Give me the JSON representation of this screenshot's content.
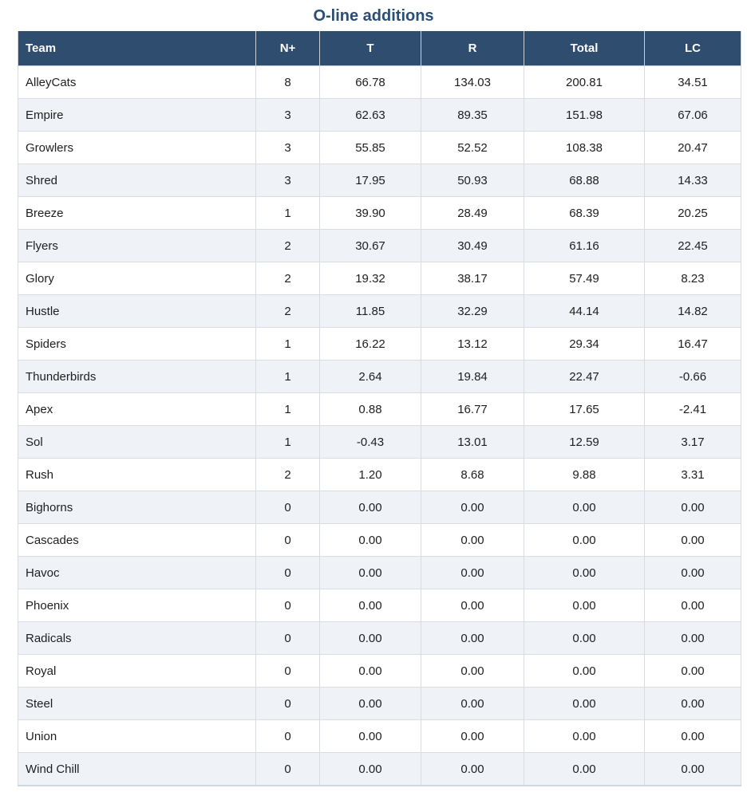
{
  "title": "O-line additions",
  "colors": {
    "title_text": "#2a4e74",
    "header_bg": "#2f4d6e",
    "header_text": "#ffffff",
    "row_alt_bg": "#eff3f8",
    "row_bg": "#ffffff",
    "border": "#d9dde2",
    "cell_text": "#1e1e1e"
  },
  "chart_data": {
    "type": "table",
    "title": "O-line additions",
    "columns": [
      {
        "key": "team",
        "label": "Team",
        "align": "left"
      },
      {
        "key": "n_plus",
        "label": "N+",
        "align": "center"
      },
      {
        "key": "t",
        "label": "T",
        "align": "center"
      },
      {
        "key": "r",
        "label": "R",
        "align": "center"
      },
      {
        "key": "total",
        "label": "Total",
        "align": "center"
      },
      {
        "key": "lc",
        "label": "LC",
        "align": "center"
      }
    ],
    "rows": [
      [
        "AlleyCats",
        "8",
        "66.78",
        "134.03",
        "200.81",
        "34.51"
      ],
      [
        "Empire",
        "3",
        "62.63",
        "89.35",
        "151.98",
        "67.06"
      ],
      [
        "Growlers",
        "3",
        "55.85",
        "52.52",
        "108.38",
        "20.47"
      ],
      [
        "Shred",
        "3",
        "17.95",
        "50.93",
        "68.88",
        "14.33"
      ],
      [
        "Breeze",
        "1",
        "39.90",
        "28.49",
        "68.39",
        "20.25"
      ],
      [
        "Flyers",
        "2",
        "30.67",
        "30.49",
        "61.16",
        "22.45"
      ],
      [
        "Glory",
        "2",
        "19.32",
        "38.17",
        "57.49",
        "8.23"
      ],
      [
        "Hustle",
        "2",
        "11.85",
        "32.29",
        "44.14",
        "14.82"
      ],
      [
        "Spiders",
        "1",
        "16.22",
        "13.12",
        "29.34",
        "16.47"
      ],
      [
        "Thunderbirds",
        "1",
        "2.64",
        "19.84",
        "22.47",
        "-0.66"
      ],
      [
        "Apex",
        "1",
        "0.88",
        "16.77",
        "17.65",
        "-2.41"
      ],
      [
        "Sol",
        "1",
        "-0.43",
        "13.01",
        "12.59",
        "3.17"
      ],
      [
        "Rush",
        "2",
        "1.20",
        "8.68",
        "9.88",
        "3.31"
      ],
      [
        "Bighorns",
        "0",
        "0.00",
        "0.00",
        "0.00",
        "0.00"
      ],
      [
        "Cascades",
        "0",
        "0.00",
        "0.00",
        "0.00",
        "0.00"
      ],
      [
        "Havoc",
        "0",
        "0.00",
        "0.00",
        "0.00",
        "0.00"
      ],
      [
        "Phoenix",
        "0",
        "0.00",
        "0.00",
        "0.00",
        "0.00"
      ],
      [
        "Radicals",
        "0",
        "0.00",
        "0.00",
        "0.00",
        "0.00"
      ],
      [
        "Royal",
        "0",
        "0.00",
        "0.00",
        "0.00",
        "0.00"
      ],
      [
        "Steel",
        "0",
        "0.00",
        "0.00",
        "0.00",
        "0.00"
      ],
      [
        "Union",
        "0",
        "0.00",
        "0.00",
        "0.00",
        "0.00"
      ],
      [
        "Wind Chill",
        "0",
        "0.00",
        "0.00",
        "0.00",
        "0.00"
      ]
    ]
  }
}
